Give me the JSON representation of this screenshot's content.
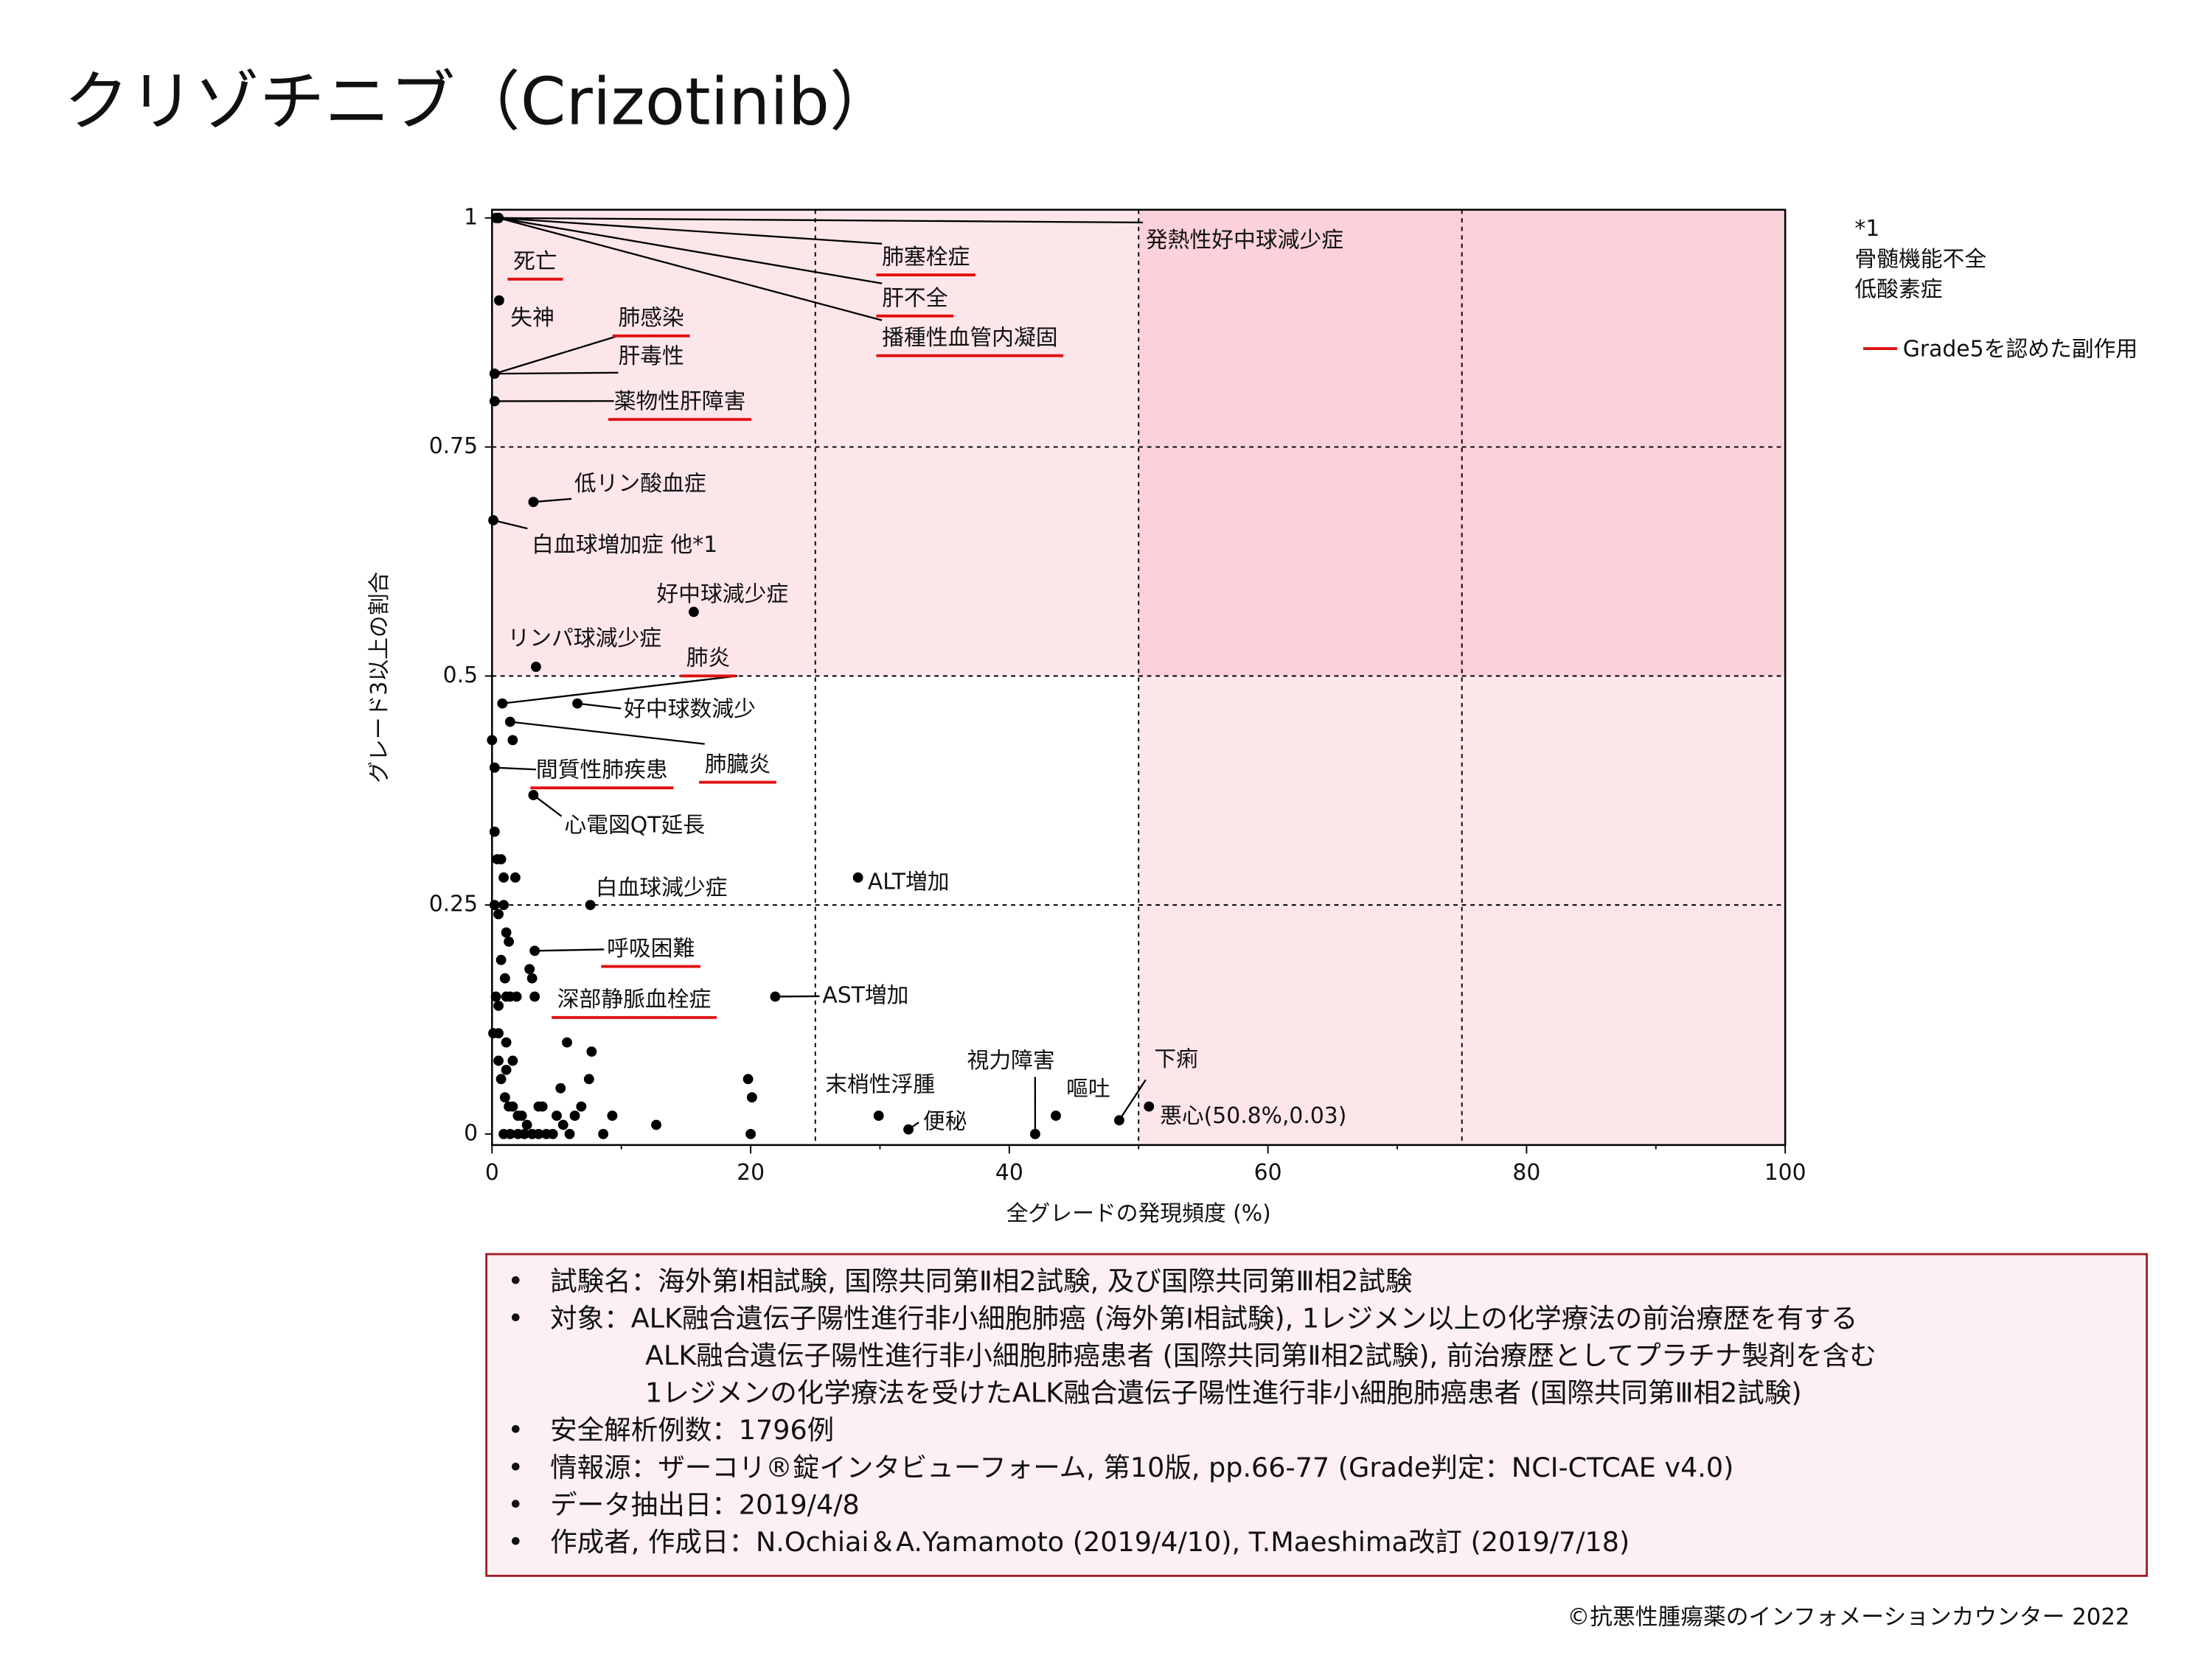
{
  "chart_data": {
    "type": "scatter",
    "title": "クリゾチニブ（Crizotinib）",
    "xlabel": "全グレードの発現頻度 (%)",
    "ylabel": "グレード3以上の割合",
    "xlim": [
      0,
      100
    ],
    "ylim": [
      -0.012,
      1.009
    ],
    "xticks": [
      0,
      20,
      40,
      60,
      80,
      100
    ],
    "xminorticks": [
      10,
      30,
      50,
      70,
      90
    ],
    "yticks": [
      0,
      0.25,
      0.5,
      0.75,
      1
    ],
    "xgrid": [
      25,
      50,
      75
    ],
    "grid": true,
    "regions": [
      {
        "x": [
          0,
          50
        ],
        "y": [
          0.5,
          1.009
        ],
        "color": "#fde6ea"
      },
      {
        "x": [
          50,
          100
        ],
        "y": [
          0.5,
          1.009
        ],
        "color": "#fbd2d9"
      },
      {
        "x": [
          50,
          100
        ],
        "y": [
          -0.012,
          0.5
        ],
        "color": "#fde6ea"
      }
    ],
    "series": [
      {
        "color": "#000000",
        "x": [
          0.5,
          0.5,
          0.5,
          0.5,
          0.3,
          0.55,
          0.2,
          0.2,
          0.2,
          3.2,
          0.1,
          15.6,
          3.4,
          0.8,
          6.6,
          1.4,
          0.2,
          3.2,
          28.3,
          7.6,
          3.3,
          3.3,
          21.9,
          29.9,
          32.2,
          42.0,
          43.6,
          48.5,
          50.8
        ],
        "y": [
          1,
          1,
          1,
          1,
          1,
          0.91,
          0.83,
          0.83,
          0.8,
          0.69,
          0.67,
          0.57,
          0.51,
          0.47,
          0.47,
          0.45,
          0.4,
          0.37,
          0.28,
          0.25,
          0.2,
          0.15,
          0.15,
          0.02,
          0.005,
          0,
          0.02,
          0.015,
          0.03
        ],
        "labels": [
          "発熱性好中球減少症",
          "肺塞栓症",
          "肝不全",
          "播種性血管内凝固",
          "死亡",
          "失神",
          "肺感染",
          "肝毒性",
          "薬物性肝障害",
          "低リン酸血症",
          "白血球増加症 他*1",
          "好中球減少症",
          "リンパ球減少症",
          "肺炎",
          "好中球数減少",
          "肺臓炎",
          "間質性肺疾患",
          "心電図QT延長",
          "ALT増加",
          "白血球減少症",
          "呼吸困難",
          "深部静脈血栓症",
          "AST増加",
          "末梢性浮腫",
          "便秘",
          "視力障害",
          "嘔吐",
          "下痢",
          "悪心(50.8%,0.03)"
        ],
        "grade5": [
          false,
          true,
          true,
          true,
          true,
          false,
          true,
          false,
          true,
          false,
          false,
          false,
          false,
          true,
          false,
          true,
          true,
          false,
          false,
          false,
          true,
          true,
          false,
          false,
          false,
          false,
          false,
          false,
          false
        ]
      },
      {
        "color": "#000000",
        "x": [
          1.6,
          0.2,
          0.4,
          0.7,
          0.9,
          1.8,
          0.2,
          0.9,
          0.5,
          1.1,
          1.3,
          0.7,
          1.0,
          0.3,
          1.1,
          0.5,
          1.4,
          1.9,
          0.5,
          1.1,
          0.5,
          1.1,
          1.6,
          0.7,
          1.0,
          1.3,
          1.6,
          2.0,
          2.3,
          2.7,
          0.9,
          1.4,
          2.0,
          2.5,
          3.1,
          3.6,
          4.2,
          4.7,
          2.9,
          3.1,
          5.8,
          7.7,
          7.5,
          5.3,
          3.6,
          3.9,
          5.0,
          5.5,
          6.4,
          6.0,
          6.9,
          8.6,
          9.3,
          12.7,
          19.8,
          20.1,
          20.0,
          0,
          0.1
        ],
        "y": [
          0.43,
          0.33,
          0.3,
          0.3,
          0.28,
          0.28,
          0.25,
          0.25,
          0.24,
          0.22,
          0.21,
          0.19,
          0.17,
          0.15,
          0.15,
          0.14,
          0.15,
          0.15,
          0.11,
          0.1,
          0.08,
          0.07,
          0.08,
          0.06,
          0.04,
          0.03,
          0.03,
          0.02,
          0.02,
          0.01,
          0,
          0,
          0,
          0,
          0,
          0,
          0,
          0,
          0.18,
          0.17,
          0.1,
          0.09,
          0.06,
          0.05,
          0.03,
          0.03,
          0.02,
          0.01,
          0.02,
          0,
          0.03,
          0,
          0.02,
          0.01,
          0.06,
          0.04,
          0,
          0.43,
          0.11
        ]
      }
    ],
    "legend": {
      "label": "Grade5を認めた副作用",
      "color": "#e01010"
    },
    "side_note": [
      "*1",
      "骨髄機能不全",
      "低酸素症"
    ]
  },
  "notes": [
    [
      "試験名：海外第Ⅰ相試験, 国際共同第Ⅱ相2試験, 及び国際共同第Ⅲ相2試験"
    ],
    [
      "対象：ALK融合遺伝子陽性進行非小細胞肺癌 (海外第Ⅰ相試験), 1レジメン以上の化学療法の前治療歴を有する",
      "ALK融合遺伝子陽性進行非小細胞肺癌患者 (国際共同第Ⅱ相2試験), 前治療歴としてプラチナ製剤を含む",
      "1レジメンの化学療法を受けたALK融合遺伝子陽性進行非小細胞肺癌患者 (国際共同第Ⅲ相2試験)"
    ],
    [
      "安全解析例数：1796例"
    ],
    [
      "情報源：ザーコリ®錠インタビューフォーム, 第10版, pp.66-77 (Grade判定：NCI-CTCAE v4.0)"
    ],
    [
      "データ抽出日：2019/4/8"
    ],
    [
      "作成者, 作成日：N.Ochiai＆A.Yamamoto (2019/4/10), T.Maeshima改訂 (2019/7/18)"
    ]
  ],
  "footer": "©抗悪性腫瘍薬のインフォメーションカウンター 2022"
}
